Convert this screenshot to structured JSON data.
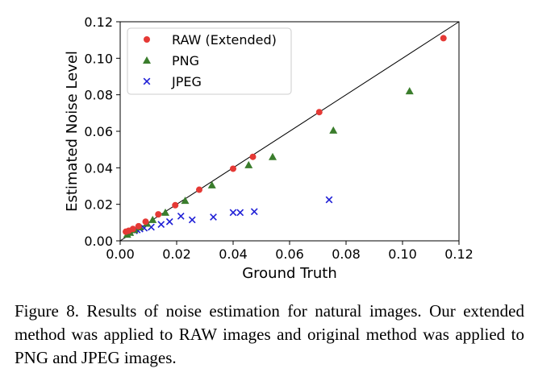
{
  "chart_data": {
    "type": "scatter",
    "title": "",
    "xlabel": "Ground Truth",
    "ylabel": "Estimated Noise Level",
    "xlim": [
      0,
      0.12
    ],
    "ylim": [
      0,
      0.12
    ],
    "xticks": [
      "0.00",
      "0.02",
      "0.04",
      "0.06",
      "0.08",
      "0.10",
      "0.12"
    ],
    "yticks": [
      "0.00",
      "0.02",
      "0.04",
      "0.06",
      "0.08",
      "0.10",
      "0.12"
    ],
    "grid": false,
    "reference_line": "y = x",
    "legend_position": "top-left",
    "series": [
      {
        "name": "RAW (Extended)",
        "marker": "circle",
        "color": "#e53935",
        "points": [
          [
            0.002,
            0.005
          ],
          [
            0.003,
            0.0055
          ],
          [
            0.0045,
            0.0065
          ],
          [
            0.0065,
            0.008
          ],
          [
            0.009,
            0.0105
          ],
          [
            0.0135,
            0.0145
          ],
          [
            0.0195,
            0.0195
          ],
          [
            0.028,
            0.028
          ],
          [
            0.04,
            0.0395
          ],
          [
            0.047,
            0.046
          ],
          [
            0.0705,
            0.0705
          ],
          [
            0.1145,
            0.111
          ]
        ]
      },
      {
        "name": "PNG",
        "marker": "triangle",
        "color": "#3a7d2c",
        "points": [
          [
            0.0025,
            0.0035
          ],
          [
            0.0035,
            0.0045
          ],
          [
            0.005,
            0.006
          ],
          [
            0.007,
            0.0075
          ],
          [
            0.0095,
            0.0095
          ],
          [
            0.0115,
            0.0115
          ],
          [
            0.016,
            0.0155
          ],
          [
            0.023,
            0.022
          ],
          [
            0.0325,
            0.0305
          ],
          [
            0.0455,
            0.0415
          ],
          [
            0.054,
            0.046
          ],
          [
            0.0755,
            0.0605
          ],
          [
            0.1025,
            0.082
          ]
        ]
      },
      {
        "name": "JPEG",
        "marker": "x",
        "color": "#1f1fd6",
        "points": [
          [
            0.0025,
            0.0035
          ],
          [
            0.0035,
            0.0045
          ],
          [
            0.005,
            0.0055
          ],
          [
            0.006,
            0.006
          ],
          [
            0.007,
            0.0065
          ],
          [
            0.0085,
            0.007
          ],
          [
            0.011,
            0.0075
          ],
          [
            0.0145,
            0.009
          ],
          [
            0.0175,
            0.0105
          ],
          [
            0.0215,
            0.0135
          ],
          [
            0.0255,
            0.0115
          ],
          [
            0.033,
            0.013
          ],
          [
            0.04,
            0.0155
          ],
          [
            0.0425,
            0.0155
          ],
          [
            0.0475,
            0.016
          ],
          [
            0.074,
            0.0225
          ]
        ]
      }
    ]
  },
  "caption": {
    "text": "Figure 8.   Results of noise estimation for natural images.  Our extended method was applied to RAW images and original method was applied to PNG and JPEG images."
  }
}
